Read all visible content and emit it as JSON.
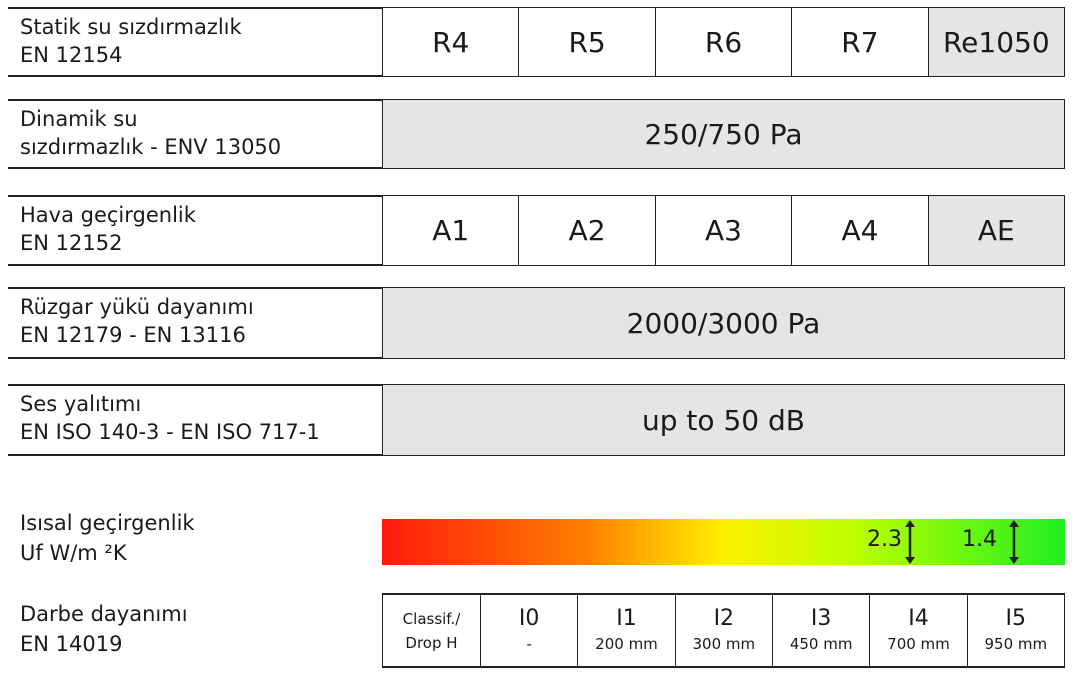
{
  "rows": [
    {
      "label1": "Statik su sızdırmazlık",
      "label2": "EN 12154",
      "cells": [
        "R4",
        "R5",
        "R6",
        "R7",
        "Re1050"
      ]
    },
    {
      "label1": "Dinamik su",
      "label2": "sızdırmazlık - ENV 13050",
      "value": "250/750 Pa"
    },
    {
      "label1": "Hava geçirgenlik",
      "label2": "EN 12152",
      "cells": [
        "A1",
        "A2",
        "A3",
        "A4",
        "AE"
      ]
    },
    {
      "label1": "Rüzgar yükü dayanımı",
      "label2": "EN 12179 - EN 13116",
      "value": "2000/3000 Pa"
    },
    {
      "label1": "Ses yalıtımı",
      "label2": "EN ISO 140-3 - EN ISO 717-1",
      "value": "up to 50 dB"
    }
  ],
  "thermal": {
    "label1": "Isısal geçirgenlik",
    "label2": "Uf W/m ²K",
    "marks": [
      "2.3",
      "1.4"
    ],
    "gradient_colors": [
      "#ff1a0a",
      "#ff8000",
      "#fff000",
      "#b8ff00",
      "#22ee22"
    ]
  },
  "impact": {
    "label1": "Darbe dayanımı",
    "label2": "EN 14019",
    "header1": "Classif./",
    "header2": "Drop H",
    "classes": [
      {
        "c": "I0",
        "d": "-"
      },
      {
        "c": "I1",
        "d": "200 mm"
      },
      {
        "c": "I2",
        "d": "300 mm"
      },
      {
        "c": "I3",
        "d": "450 mm"
      },
      {
        "c": "I4",
        "d": "700 mm"
      },
      {
        "c": "I5",
        "d": "950 mm"
      }
    ]
  }
}
